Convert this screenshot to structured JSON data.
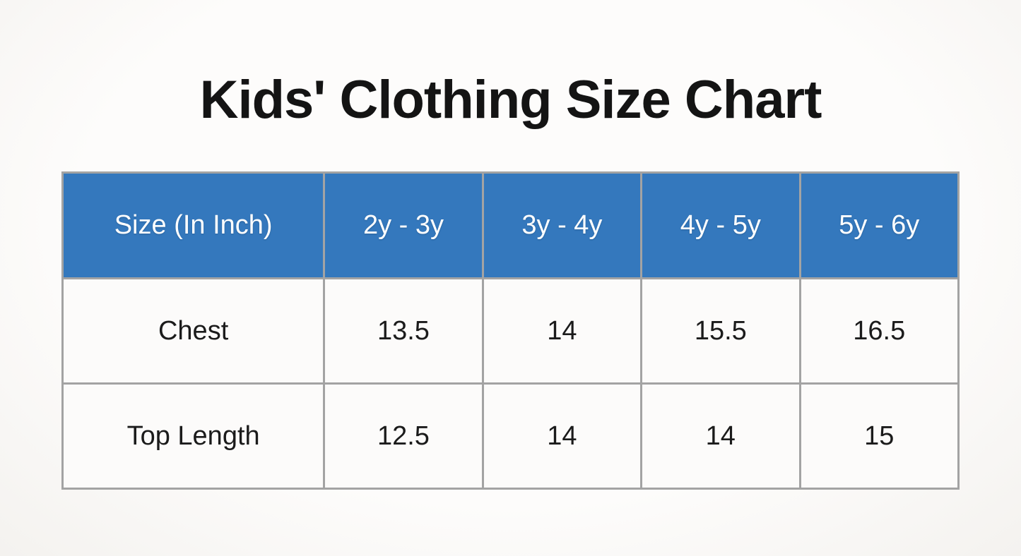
{
  "title": "Kids' Clothing Size Chart",
  "colors": {
    "background": "#fbfaf8",
    "header_background": "#3478bd",
    "header_text": "#ffffff",
    "table_border": "#a3a3a3",
    "body_text": "#1b1b1b"
  },
  "table": {
    "columns": [
      "Size (In Inch)",
      "2y - 3y",
      "3y - 4y",
      "4y - 5y",
      "5y - 6y"
    ],
    "rows": [
      {
        "label": "Chest",
        "values": [
          "13.5",
          "14",
          "15.5",
          "16.5"
        ]
      },
      {
        "label": "Top Length",
        "values": [
          "12.5",
          "14",
          "14",
          "15"
        ]
      }
    ]
  },
  "chart_data": {
    "type": "table",
    "title": "Kids' Clothing Size Chart",
    "columns": [
      "Size (In Inch)",
      "2y - 3y",
      "3y - 4y",
      "4y - 5y",
      "5y - 6y"
    ],
    "rows": [
      [
        "Chest",
        13.5,
        14,
        15.5,
        16.5
      ],
      [
        "Top Length",
        12.5,
        14,
        14,
        15
      ]
    ],
    "units": "inches",
    "header_style": "blue band, white text",
    "layout": "first column wider than the four size columns"
  }
}
